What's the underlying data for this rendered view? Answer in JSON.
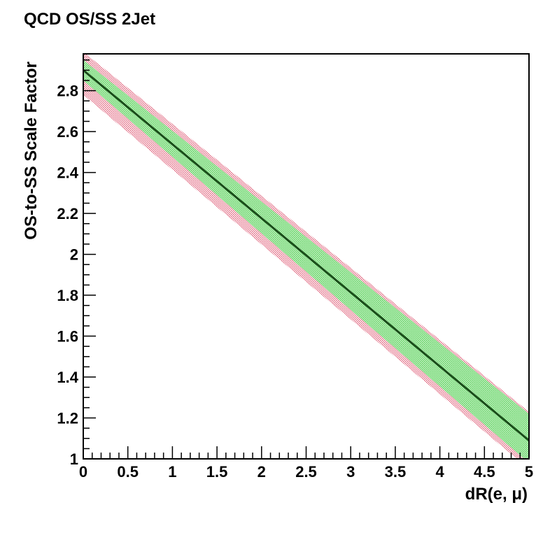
{
  "chart_data": {
    "type": "line",
    "title": "QCD OS/SS 2Jet",
    "xlabel": "dR(e,  μ)",
    "ylabel": "OS-to-SS Scale Factor",
    "xlim": [
      0,
      5
    ],
    "ylim": [
      1,
      2.98
    ],
    "x_ticks": [
      0,
      0.5,
      1,
      1.5,
      2,
      2.5,
      3,
      3.5,
      4,
      4.5,
      5
    ],
    "x_tick_labels": [
      "0",
      "0.5",
      "1",
      "1.5",
      "2",
      "2.5",
      "3",
      "3.5",
      "4",
      "4.5",
      "5"
    ],
    "y_ticks": [
      1,
      1.2,
      1.4,
      1.6,
      1.8,
      2,
      2.2,
      2.4,
      2.6,
      2.8
    ],
    "y_tick_labels": [
      "1",
      "1.2",
      "1.4",
      "1.6",
      "1.8",
      "2",
      "2.2",
      "2.4",
      "2.6",
      "2.8"
    ],
    "grid": false,
    "legend": false,
    "series": [
      {
        "kind": "line",
        "color": "#1a4d1a",
        "x": [
          0,
          5
        ],
        "y": [
          2.9,
          1.09
        ]
      },
      {
        "kind": "band",
        "fill": "#e88a9a",
        "x": [
          0,
          5
        ],
        "lower": [
          2.78,
          0.95
        ],
        "upper": [
          2.99,
          1.23
        ]
      },
      {
        "kind": "band",
        "fill": "#90e090",
        "x": [
          0,
          5
        ],
        "lower": [
          2.85,
          0.98
        ],
        "upper": [
          2.95,
          1.22
        ]
      }
    ]
  }
}
